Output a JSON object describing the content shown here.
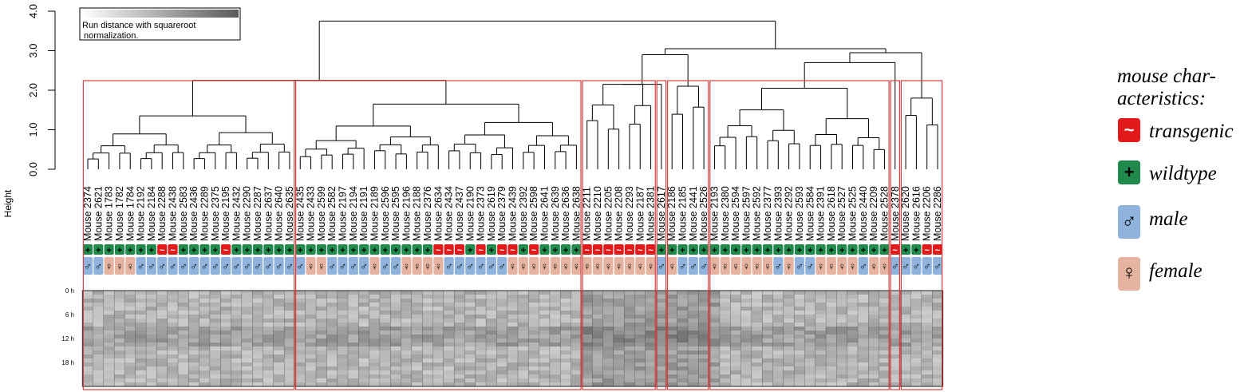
{
  "chart_data": {
    "type": "dendrogram",
    "y_axis": {
      "label": "Height",
      "range": [
        0,
        4.0
      ],
      "ticks": [
        "0.0",
        "1.0",
        "2.0",
        "3.0",
        "4.0"
      ]
    },
    "leaves": [
      {
        "label": "Mouse 2374",
        "genotype": "wildtype",
        "sex": "male"
      },
      {
        "label": "Mouse 2621",
        "genotype": "wildtype",
        "sex": "male"
      },
      {
        "label": "Mouse 1783",
        "genotype": "wildtype",
        "sex": "female"
      },
      {
        "label": "Mouse 1782",
        "genotype": "wildtype",
        "sex": "female"
      },
      {
        "label": "Mouse 1784",
        "genotype": "wildtype",
        "sex": "female"
      },
      {
        "label": "Mouse 2192",
        "genotype": "wildtype",
        "sex": "male"
      },
      {
        "label": "Mouse 2184",
        "genotype": "wildtype",
        "sex": "male"
      },
      {
        "label": "Mouse 2288",
        "genotype": "transgenic",
        "sex": "male"
      },
      {
        "label": "Mouse 2438",
        "genotype": "transgenic",
        "sex": "male"
      },
      {
        "label": "Mouse 2583",
        "genotype": "wildtype",
        "sex": "male"
      },
      {
        "label": "Mouse 2436",
        "genotype": "wildtype",
        "sex": "male"
      },
      {
        "label": "Mouse 2289",
        "genotype": "wildtype",
        "sex": "male"
      },
      {
        "label": "Mouse 2375",
        "genotype": "wildtype",
        "sex": "male"
      },
      {
        "label": "Mouse 2195",
        "genotype": "transgenic",
        "sex": "male"
      },
      {
        "label": "Mouse 2432",
        "genotype": "wildtype",
        "sex": "male"
      },
      {
        "label": "Mouse 2290",
        "genotype": "wildtype",
        "sex": "male"
      },
      {
        "label": "Mouse 2287",
        "genotype": "wildtype",
        "sex": "male"
      },
      {
        "label": "Mouse 2637",
        "genotype": "wildtype",
        "sex": "male"
      },
      {
        "label": "Mouse 2640",
        "genotype": "wildtype",
        "sex": "male"
      },
      {
        "label": "Mouse 2635",
        "genotype": "wildtype",
        "sex": "male"
      },
      {
        "label": "Mouse 2435",
        "genotype": "wildtype",
        "sex": "male"
      },
      {
        "label": "Mouse 2433",
        "genotype": "wildtype",
        "sex": "female"
      },
      {
        "label": "Mouse 2599",
        "genotype": "wildtype",
        "sex": "female"
      },
      {
        "label": "Mouse 2582",
        "genotype": "wildtype",
        "sex": "male"
      },
      {
        "label": "Mouse 2197",
        "genotype": "wildtype",
        "sex": "male"
      },
      {
        "label": "Mouse 2194",
        "genotype": "wildtype",
        "sex": "male"
      },
      {
        "label": "Mouse 2191",
        "genotype": "wildtype",
        "sex": "male"
      },
      {
        "label": "Mouse 2189",
        "genotype": "wildtype",
        "sex": "female"
      },
      {
        "label": "Mouse 2596",
        "genotype": "wildtype",
        "sex": "male"
      },
      {
        "label": "Mouse 2595",
        "genotype": "wildtype",
        "sex": "male"
      },
      {
        "label": "Mouse 2196",
        "genotype": "wildtype",
        "sex": "female"
      },
      {
        "label": "Mouse 2188",
        "genotype": "wildtype",
        "sex": "female"
      },
      {
        "label": "Mouse 2376",
        "genotype": "wildtype",
        "sex": "female"
      },
      {
        "label": "Mouse 2634",
        "genotype": "transgenic",
        "sex": "female"
      },
      {
        "label": "Mouse 2434",
        "genotype": "transgenic",
        "sex": "male"
      },
      {
        "label": "Mouse 2437",
        "genotype": "transgenic",
        "sex": "male"
      },
      {
        "label": "Mouse 2190",
        "genotype": "wildtype",
        "sex": "male"
      },
      {
        "label": "Mouse 2373",
        "genotype": "transgenic",
        "sex": "male"
      },
      {
        "label": "Mouse 2619",
        "genotype": "wildtype",
        "sex": "male"
      },
      {
        "label": "Mouse 2379",
        "genotype": "transgenic",
        "sex": "male"
      },
      {
        "label": "Mouse 2439",
        "genotype": "transgenic",
        "sex": "female"
      },
      {
        "label": "Mouse 2392",
        "genotype": "wildtype",
        "sex": "female"
      },
      {
        "label": "Mouse 2598",
        "genotype": "transgenic",
        "sex": "female"
      },
      {
        "label": "Mouse 2641",
        "genotype": "wildtype",
        "sex": "female"
      },
      {
        "label": "Mouse 2639",
        "genotype": "wildtype",
        "sex": "female"
      },
      {
        "label": "Mouse 2636",
        "genotype": "wildtype",
        "sex": "female"
      },
      {
        "label": "Mouse 2638",
        "genotype": "wildtype",
        "sex": "female"
      },
      {
        "label": "Mouse 2211",
        "genotype": "transgenic",
        "sex": "female"
      },
      {
        "label": "Mouse 2210",
        "genotype": "transgenic",
        "sex": "female"
      },
      {
        "label": "Mouse 2205",
        "genotype": "transgenic",
        "sex": "female"
      },
      {
        "label": "Mouse 2208",
        "genotype": "transgenic",
        "sex": "female"
      },
      {
        "label": "Mouse 2293",
        "genotype": "transgenic",
        "sex": "female"
      },
      {
        "label": "Mouse 2187",
        "genotype": "transgenic",
        "sex": "female"
      },
      {
        "label": "Mouse 2381",
        "genotype": "transgenic",
        "sex": "female"
      },
      {
        "label": "Mouse 2617",
        "genotype": "wildtype",
        "sex": "male"
      },
      {
        "label": "Mouse 2186",
        "genotype": "wildtype",
        "sex": "female"
      },
      {
        "label": "Mouse 2185",
        "genotype": "wildtype",
        "sex": "male"
      },
      {
        "label": "Mouse 2441",
        "genotype": "wildtype",
        "sex": "male"
      },
      {
        "label": "Mouse 2526",
        "genotype": "wildtype",
        "sex": "male"
      },
      {
        "label": "Mouse 2193",
        "genotype": "wildtype",
        "sex": "female"
      },
      {
        "label": "Mouse 2380",
        "genotype": "wildtype",
        "sex": "female"
      },
      {
        "label": "Mouse 2594",
        "genotype": "wildtype",
        "sex": "female"
      },
      {
        "label": "Mouse 2597",
        "genotype": "wildtype",
        "sex": "female"
      },
      {
        "label": "Mouse 2592",
        "genotype": "wildtype",
        "sex": "female"
      },
      {
        "label": "Mouse 2377",
        "genotype": "wildtype",
        "sex": "female"
      },
      {
        "label": "Mouse 2393",
        "genotype": "wildtype",
        "sex": "male"
      },
      {
        "label": "Mouse 2292",
        "genotype": "wildtype",
        "sex": "female"
      },
      {
        "label": "Mouse 2593",
        "genotype": "wildtype",
        "sex": "male"
      },
      {
        "label": "Mouse 2584",
        "genotype": "wildtype",
        "sex": "male"
      },
      {
        "label": "Mouse 2391",
        "genotype": "wildtype",
        "sex": "female"
      },
      {
        "label": "Mouse 2618",
        "genotype": "wildtype",
        "sex": "female"
      },
      {
        "label": "Mouse 2527",
        "genotype": "wildtype",
        "sex": "female"
      },
      {
        "label": "Mouse 2525",
        "genotype": "wildtype",
        "sex": "female"
      },
      {
        "label": "Mouse 2440",
        "genotype": "wildtype",
        "sex": "male"
      },
      {
        "label": "Mouse 2209",
        "genotype": "wildtype",
        "sex": "female"
      },
      {
        "label": "Mouse 2528",
        "genotype": "wildtype",
        "sex": "female"
      },
      {
        "label": "Mouse 2378",
        "genotype": "transgenic",
        "sex": "male"
      },
      {
        "label": "Mouse 2620",
        "genotype": "wildtype",
        "sex": "male"
      },
      {
        "label": "Mouse 2616",
        "genotype": "wildtype",
        "sex": "male"
      },
      {
        "label": "Mouse 2206",
        "genotype": "transgenic",
        "sex": "male"
      },
      {
        "label": "Mouse 2286",
        "genotype": "transgenic",
        "sex": "male"
      }
    ],
    "merge_heights": {
      "root": 3.75,
      "group_A_top": 2.25,
      "group_B_top": 3.0
    },
    "heatmap": {
      "row_labels": [
        "0 h",
        "6 h",
        "12 h",
        "18 h"
      ],
      "colorbar_caption": [
        "Run distance with squareroot",
        "normalization."
      ]
    }
  },
  "legend": {
    "title_lines": [
      "mouse char-",
      "acteristics:"
    ],
    "items": [
      {
        "symbol": "~",
        "label": "transgenic",
        "color": "#e31a1c"
      },
      {
        "symbol": "+",
        "label": "wildtype",
        "color": "#1f8a4c"
      },
      {
        "symbol": "♂",
        "label": "male",
        "color": "#8fb3dc"
      },
      {
        "symbol": "♀",
        "label": "female",
        "color": "#e6b3a0"
      }
    ]
  },
  "colors": {
    "transgenic": "#e31a1c",
    "wildtype": "#1f8a4c",
    "male": "#8fb3dc",
    "female": "#e6b3a0",
    "cluster_box": "#d04040"
  }
}
